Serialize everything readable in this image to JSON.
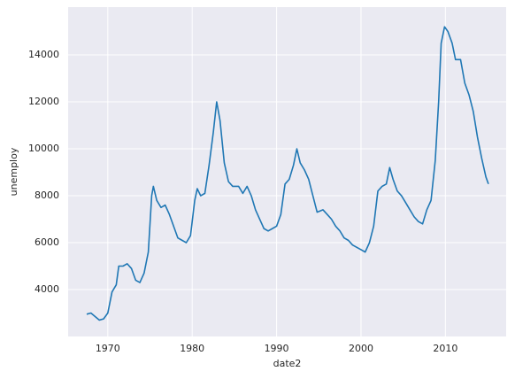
{
  "chart_data": {
    "type": "line",
    "xlabel": "date2",
    "ylabel": "unemploy",
    "x": [
      1967.5,
      1968.0,
      1968.5,
      1969.0,
      1969.5,
      1970.0,
      1970.5,
      1971.0,
      1971.3,
      1971.8,
      1972.3,
      1972.8,
      1973.3,
      1973.8,
      1974.3,
      1974.8,
      1975.2,
      1975.4,
      1975.8,
      1976.3,
      1976.8,
      1977.3,
      1977.8,
      1978.3,
      1978.8,
      1979.3,
      1979.8,
      1980.3,
      1980.6,
      1981.0,
      1981.5,
      1982.0,
      1982.5,
      1982.9,
      1983.3,
      1983.8,
      1984.3,
      1984.8,
      1985.5,
      1986.0,
      1986.5,
      1987.0,
      1987.5,
      1988.0,
      1988.5,
      1989.0,
      1989.5,
      1990.0,
      1990.5,
      1991.0,
      1991.5,
      1992.0,
      1992.4,
      1992.8,
      1993.3,
      1993.8,
      1994.3,
      1994.8,
      1995.5,
      1996.0,
      1996.5,
      1997.0,
      1997.5,
      1998.0,
      1998.5,
      1999.0,
      1999.5,
      2000.0,
      2000.5,
      2001.0,
      2001.5,
      2002.0,
      2002.5,
      2003.0,
      2003.4,
      2003.8,
      2004.3,
      2004.8,
      2005.3,
      2005.8,
      2006.3,
      2006.8,
      2007.3,
      2007.8,
      2008.3,
      2008.8,
      2009.2,
      2009.5,
      2009.9,
      2010.3,
      2010.8,
      2011.2,
      2011.8,
      2012.3,
      2012.8,
      2013.3,
      2013.8,
      2014.3,
      2014.8,
      2015.1
    ],
    "series": [
      {
        "name": "unemploy",
        "color": "#1f77b4",
        "values": [
          2950,
          3000,
          2850,
          2700,
          2750,
          3000,
          3900,
          4200,
          5000,
          5000,
          5100,
          4900,
          4400,
          4300,
          4700,
          5600,
          8000,
          8400,
          7800,
          7500,
          7600,
          7200,
          6700,
          6200,
          6100,
          6000,
          6300,
          7800,
          8300,
          8000,
          8100,
          9300,
          10700,
          12000,
          11200,
          9400,
          8600,
          8400,
          8400,
          8100,
          8400,
          8000,
          7400,
          7000,
          6600,
          6500,
          6600,
          6700,
          7200,
          8500,
          8700,
          9300,
          10000,
          9400,
          9100,
          8700,
          8000,
          7300,
          7400,
          7200,
          7000,
          6700,
          6500,
          6200,
          6100,
          5900,
          5800,
          5700,
          5600,
          6000,
          6700,
          8200,
          8400,
          8500,
          9200,
          8700,
          8200,
          8000,
          7700,
          7400,
          7100,
          6900,
          6800,
          7400,
          7800,
          9500,
          12000,
          14500,
          15200,
          15000,
          14500,
          13800,
          13800,
          12800,
          12300,
          11600,
          10500,
          9600,
          8800,
          8500
        ]
      }
    ],
    "xlim": [
      1965.3,
      2017.2
    ],
    "xticks": [
      1970,
      1980,
      1990,
      2000,
      2010
    ],
    "ylim": [
      2000,
      16040
    ],
    "yticks": [
      4000,
      6000,
      8000,
      10000,
      12000,
      14000
    ],
    "grid": true
  }
}
